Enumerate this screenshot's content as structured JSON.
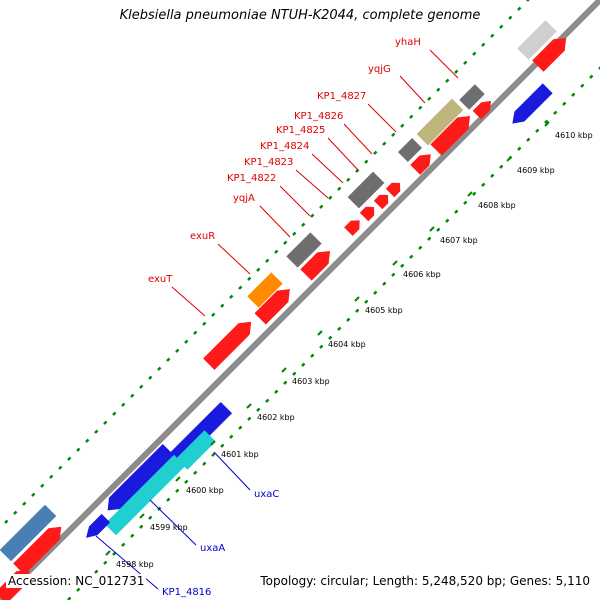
{
  "title": "Klebsiella pneumoniae NTUH-K2044, complete genome",
  "footer": {
    "accession_label": "Accession:",
    "accession": "NC_012731",
    "summary": "Topology: circular; Length: 5,248,520 bp; Genes: 5,110"
  },
  "colors": {
    "forward_gene": "#ff1a1a",
    "reverse_gene": "#1a1adf",
    "orange_gene": "#ff8c00",
    "cyan_gene": "#20d0d0",
    "steelblue_gene": "#4a7fb5",
    "dark_gray_gene": "#6e6e6e",
    "light_gray_gene": "#cfcfcf",
    "khaki_gene": "#bdb57a",
    "backbone": "#8c8c8c",
    "tick_green": "#008800",
    "label_red": "#e00000",
    "label_blue": "#0000cc"
  },
  "kbp_ticks": [
    {
      "label": "4598 kbp"
    },
    {
      "label": "4599 kbp"
    },
    {
      "label": "4600 kbp"
    },
    {
      "label": "4601 kbp"
    },
    {
      "label": "4602 kbp"
    },
    {
      "label": "4603 kbp"
    },
    {
      "label": "4604 kbp"
    },
    {
      "label": "4605 kbp"
    },
    {
      "label": "4606 kbp"
    },
    {
      "label": "4607 kbp"
    },
    {
      "label": "4608 kbp"
    },
    {
      "label": "4609 kbp"
    },
    {
      "label": "4610 kbp"
    }
  ],
  "gene_labels": [
    {
      "name": "yhaH",
      "color": "red"
    },
    {
      "name": "yqjG",
      "color": "red"
    },
    {
      "name": "KP1_4827",
      "color": "red"
    },
    {
      "name": "KP1_4826",
      "color": "red"
    },
    {
      "name": "KP1_4825",
      "color": "red"
    },
    {
      "name": "KP1_4824",
      "color": "red"
    },
    {
      "name": "KP1_4823",
      "color": "red"
    },
    {
      "name": "KP1_4822",
      "color": "red"
    },
    {
      "name": "yqjA",
      "color": "red"
    },
    {
      "name": "exuR",
      "color": "red"
    },
    {
      "name": "exuT",
      "color": "red"
    },
    {
      "name": "uxaC",
      "color": "blue"
    },
    {
      "name": "uxaA",
      "color": "blue"
    },
    {
      "name": "KP1_4816",
      "color": "blue"
    }
  ]
}
